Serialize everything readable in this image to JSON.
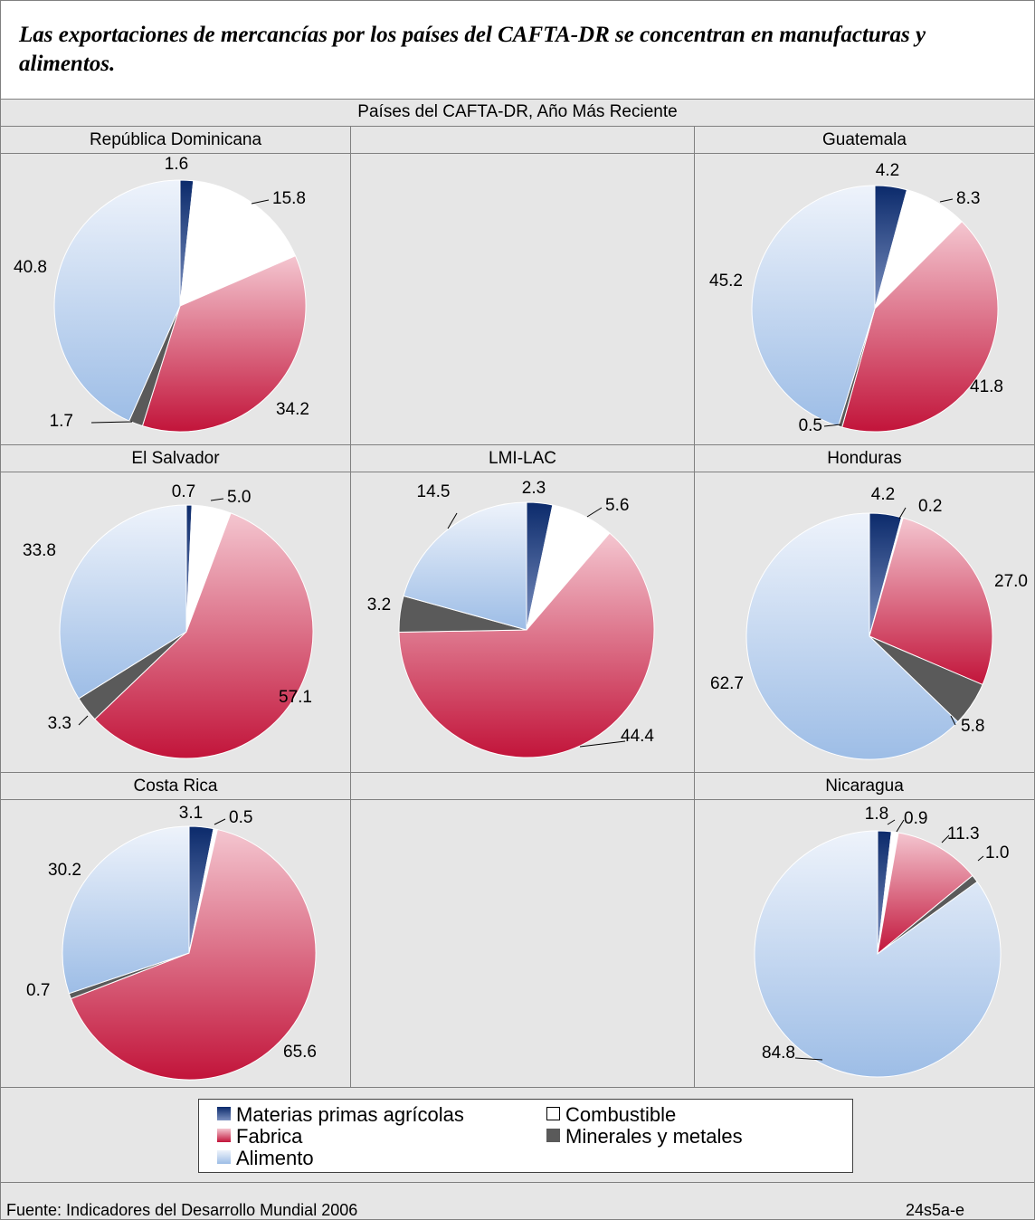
{
  "title": "Las exportaciones de mercancías por los países del CAFTA-DR se concentran en manufacturas y alimentos.",
  "subtitle": "Países del CAFTA-DR, Año Más Reciente",
  "source": "Fuente: Indicadores del Desarrollo Mundial 2006",
  "code": "24s5a-e",
  "colors": {
    "materias": "#1f3d7a",
    "combustible": "#ffffff",
    "fabrica": "#c8203f",
    "minerales": "#5a5a5a",
    "alimento": "#a6c2e6"
  },
  "legend": [
    {
      "key": "materias",
      "label": "Materias primas agrícolas"
    },
    {
      "key": "combustible",
      "label": "Combustible"
    },
    {
      "key": "fabrica",
      "label": "Fabrica"
    },
    {
      "key": "minerales",
      "label": "Minerales y metales"
    },
    {
      "key": "alimento",
      "label": "Alimento"
    }
  ],
  "chart_data": [
    {
      "type": "pie",
      "title": "República Dominicana",
      "categories": [
        "Materias primas agrícolas",
        "Combustible",
        "Fabrica",
        "Minerales y metales",
        "Alimento"
      ],
      "values": [
        1.6,
        15.8,
        34.2,
        1.7,
        40.8
      ]
    },
    {
      "type": "pie",
      "title": "Guatemala",
      "categories": [
        "Materias primas agrícolas",
        "Combustible",
        "Fabrica",
        "Minerales y metales",
        "Alimento"
      ],
      "values": [
        4.2,
        8.3,
        41.8,
        0.5,
        45.2
      ]
    },
    {
      "type": "pie",
      "title": "El Salvador",
      "categories": [
        "Materias primas agrícolas",
        "Combustible",
        "Fabrica",
        "Minerales y metales",
        "Alimento"
      ],
      "values": [
        0.7,
        5.0,
        57.1,
        3.3,
        33.8
      ]
    },
    {
      "type": "pie",
      "title": "LMI-LAC",
      "categories": [
        "Materias primas agrícolas",
        "Combustible",
        "Fabrica",
        "Minerales y metales",
        "Alimento"
      ],
      "values": [
        2.3,
        5.6,
        44.4,
        3.2,
        14.5
      ]
    },
    {
      "type": "pie",
      "title": "Honduras",
      "categories": [
        "Materias primas agrícolas",
        "Combustible",
        "Fabrica",
        "Minerales y metales",
        "Alimento"
      ],
      "values": [
        4.2,
        0.2,
        27.0,
        5.8,
        62.7
      ]
    },
    {
      "type": "pie",
      "title": "Costa Rica",
      "categories": [
        "Materias primas agrícolas",
        "Combustible",
        "Fabrica",
        "Minerales y metales",
        "Alimento"
      ],
      "values": [
        3.1,
        0.5,
        65.6,
        0.7,
        30.2
      ]
    },
    {
      "type": "pie",
      "title": "Nicaragua",
      "categories": [
        "Materias primas agrícolas",
        "Combustible",
        "Fabrica",
        "Minerales y metales",
        "Alimento"
      ],
      "values": [
        1.8,
        0.9,
        11.3,
        1.0,
        84.8
      ]
    }
  ]
}
